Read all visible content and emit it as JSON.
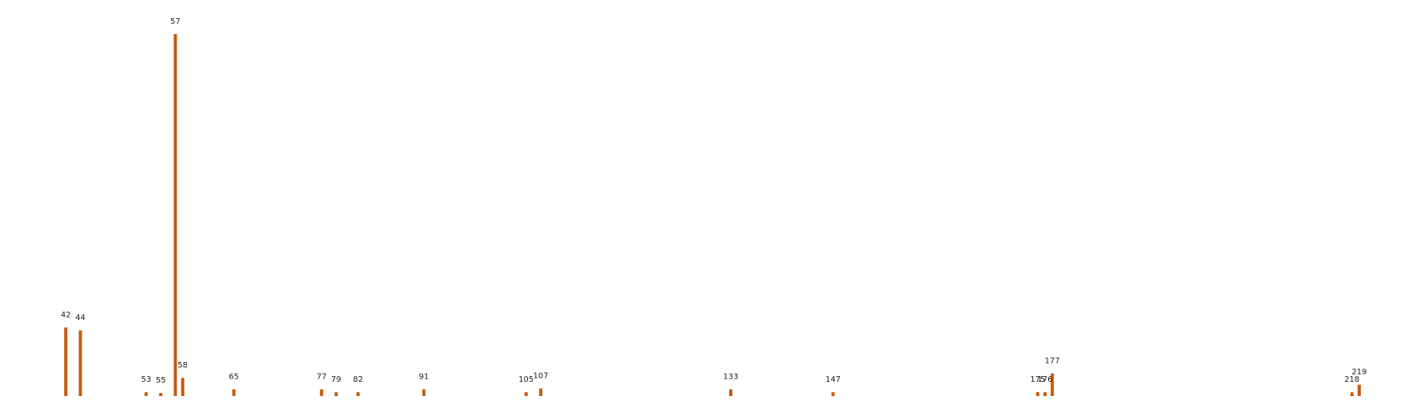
{
  "chart_data": {
    "type": "bar",
    "title": "",
    "xlabel": "",
    "ylabel": "",
    "axes_visible": false,
    "grid": false,
    "bar_color": "#c65a0e",
    "x": [
      42,
      44,
      53,
      55,
      57,
      58,
      65,
      77,
      79,
      82,
      91,
      105,
      107,
      133,
      147,
      175,
      176,
      177,
      218,
      219
    ],
    "values": [
      9.1,
      8.7,
      0.5,
      0.4,
      48.0,
      2.4,
      0.9,
      0.9,
      0.5,
      0.5,
      0.9,
      0.5,
      1.0,
      0.9,
      0.5,
      0.5,
      0.5,
      3.0,
      0.5,
      1.5
    ],
    "data_labels": [
      "42",
      "44",
      "53",
      "55",
      "57",
      "58",
      "65",
      "77",
      "79",
      "82",
      "91",
      "105",
      "107",
      "133",
      "147",
      "175",
      "176",
      "177",
      "218",
      "219"
    ],
    "xlim": [
      33,
      228
    ],
    "ylim": [
      0,
      50
    ]
  }
}
